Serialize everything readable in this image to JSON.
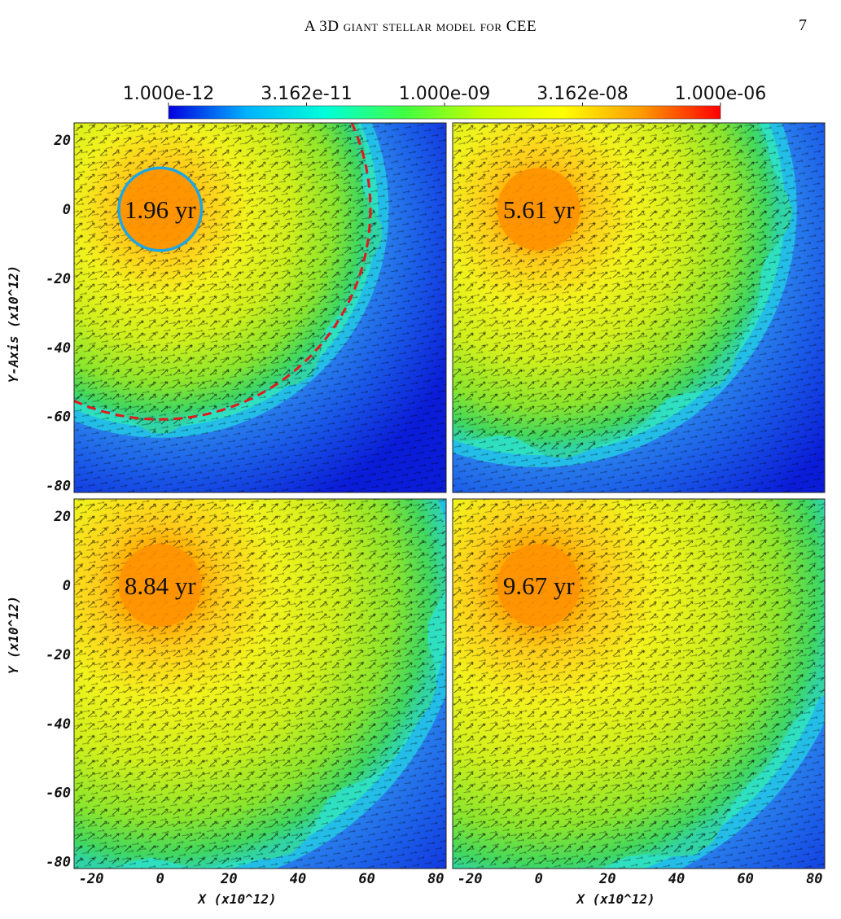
{
  "header": {
    "running_title_prefix": "A 3D ",
    "running_title_smallcaps": "giant stellar model for",
    "running_title_suffix": " CEE",
    "page_number": "7"
  },
  "chart_data": {
    "type": "heatmap",
    "description_of_quantity": "",
    "colorbar": {
      "scale": "log",
      "min": 1e-12,
      "max": 1e-06,
      "ticks": [
        "1.000e-12",
        "3.162e-11",
        "1.000e-09",
        "3.162e-08",
        "1.000e-06"
      ],
      "colormap": [
        "#0000e0",
        "#00b4ff",
        "#00ffd8",
        "#40ff40",
        "#c8ff00",
        "#ffff00",
        "#ff9a00",
        "#ff0000"
      ]
    },
    "x_axis": {
      "range": [
        -25,
        83
      ],
      "ticks": [
        -20,
        0,
        20,
        40,
        60,
        80
      ],
      "tick_labels": [
        "-20",
        "0",
        "20",
        "40",
        "60",
        "80"
      ],
      "label": "X (x10^12)"
    },
    "y_axis": {
      "range": [
        -82,
        25
      ],
      "ticks": [
        20,
        0,
        -20,
        -40,
        -60,
        -80
      ],
      "tick_labels": [
        "20",
        "0",
        "-20",
        "-40",
        "-60",
        "-80"
      ],
      "label_top": "Y-Axis (x10^12)",
      "label_bottom": "Y (x10^12)"
    },
    "panels": [
      {
        "id": "top-left",
        "time_label": "1.96 yr",
        "envelope_radius": 62,
        "cyan_circle_radius": 12,
        "red_dashed_circle_radius": 61
      },
      {
        "id": "top-right",
        "time_label": "5.61 yr",
        "envelope_radius": 70
      },
      {
        "id": "bottom-left",
        "time_label": "8.84 yr",
        "envelope_radius": 83
      },
      {
        "id": "bottom-right",
        "time_label": "9.67 yr",
        "envelope_radius": 86
      }
    ],
    "annotation_colors": {
      "cyan_circle": "#1ea7e0",
      "red_dashed_circle": "#e01a1a",
      "arrows": "#000000",
      "core": "#ff9400"
    }
  }
}
